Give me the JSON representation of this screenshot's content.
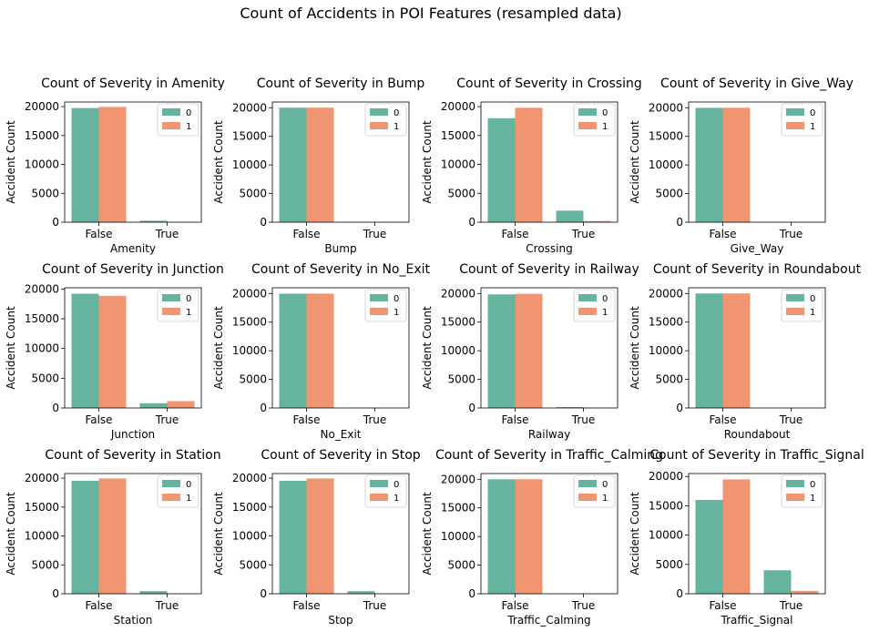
{
  "figure": {
    "title": "Count of Accidents in POI Features (resampled data)"
  },
  "style": {
    "color_0": "#66b3a0",
    "color_1": "#f0956f"
  },
  "chart_data": [
    {
      "type": "bar",
      "title": "Count of Severity in Amenity",
      "xlabel": "Amenity",
      "ylabel": "Accident Count",
      "categories": [
        "False",
        "True"
      ],
      "ylim": [
        0,
        20800
      ],
      "yticks": [
        0,
        5000,
        10000,
        15000,
        20000
      ],
      "legend": "top-right",
      "series": [
        {
          "name": "0",
          "values": [
            19750,
            250
          ]
        },
        {
          "name": "1",
          "values": [
            19950,
            50
          ]
        }
      ]
    },
    {
      "type": "bar",
      "title": "Count of Severity in Bump",
      "xlabel": "Bump",
      "ylabel": "Accident Count",
      "categories": [
        "False",
        "True"
      ],
      "ylim": [
        0,
        21000
      ],
      "yticks": [
        0,
        5000,
        10000,
        15000,
        20000
      ],
      "legend": "top-right",
      "series": [
        {
          "name": "0",
          "values": [
            20000,
            0
          ]
        },
        {
          "name": "1",
          "values": [
            20000,
            0
          ]
        }
      ]
    },
    {
      "type": "bar",
      "title": "Count of Severity in Crossing",
      "xlabel": "Crossing",
      "ylabel": "Accident Count",
      "categories": [
        "False",
        "True"
      ],
      "ylim": [
        0,
        20800
      ],
      "yticks": [
        0,
        5000,
        10000,
        15000,
        20000
      ],
      "legend": "top-right",
      "series": [
        {
          "name": "0",
          "values": [
            18000,
            2000
          ]
        },
        {
          "name": "1",
          "values": [
            19800,
            200
          ]
        }
      ]
    },
    {
      "type": "bar",
      "title": "Count of Severity in Give_Way",
      "xlabel": "Give_Way",
      "ylabel": "Accident Count",
      "categories": [
        "False",
        "True"
      ],
      "ylim": [
        0,
        21000
      ],
      "yticks": [
        0,
        5000,
        10000,
        15000,
        20000
      ],
      "legend": "top-right",
      "series": [
        {
          "name": "0",
          "values": [
            19980,
            20
          ]
        },
        {
          "name": "1",
          "values": [
            19990,
            10
          ]
        }
      ]
    },
    {
      "type": "bar",
      "title": "Count of Severity in Junction",
      "xlabel": "Junction",
      "ylabel": "Accident Count",
      "categories": [
        "False",
        "True"
      ],
      "ylim": [
        0,
        20200
      ],
      "yticks": [
        0,
        5000,
        10000,
        15000,
        20000
      ],
      "legend": "top-right",
      "series": [
        {
          "name": "0",
          "values": [
            19200,
            800
          ]
        },
        {
          "name": "1",
          "values": [
            18850,
            1150
          ]
        }
      ]
    },
    {
      "type": "bar",
      "title": "Count of Severity in No_Exit",
      "xlabel": "No_Exit",
      "ylabel": "Accident Count",
      "categories": [
        "False",
        "True"
      ],
      "ylim": [
        0,
        21000
      ],
      "yticks": [
        0,
        5000,
        10000,
        15000,
        20000
      ],
      "legend": "top-right",
      "series": [
        {
          "name": "0",
          "values": [
            19970,
            30
          ]
        },
        {
          "name": "1",
          "values": [
            19980,
            20
          ]
        }
      ]
    },
    {
      "type": "bar",
      "title": "Count of Severity in Railway",
      "xlabel": "Railway",
      "ylabel": "Accident Count",
      "categories": [
        "False",
        "True"
      ],
      "ylim": [
        0,
        21000
      ],
      "yticks": [
        0,
        5000,
        10000,
        15000,
        20000
      ],
      "legend": "top-right",
      "series": [
        {
          "name": "0",
          "values": [
            19850,
            150
          ]
        },
        {
          "name": "1",
          "values": [
            19950,
            50
          ]
        }
      ]
    },
    {
      "type": "bar",
      "title": "Count of Severity in Roundabout",
      "xlabel": "Roundabout",
      "ylabel": "Accident Count",
      "categories": [
        "False",
        "True"
      ],
      "ylim": [
        0,
        21000
      ],
      "yticks": [
        0,
        5000,
        10000,
        15000,
        20000
      ],
      "legend": "top-right",
      "series": [
        {
          "name": "0",
          "values": [
            20000,
            0
          ]
        },
        {
          "name": "1",
          "values": [
            20000,
            0
          ]
        }
      ]
    },
    {
      "type": "bar",
      "title": "Count of Severity in Station",
      "xlabel": "Station",
      "ylabel": "Accident Count",
      "categories": [
        "False",
        "True"
      ],
      "ylim": [
        0,
        20800
      ],
      "yticks": [
        0,
        5000,
        10000,
        15000,
        20000
      ],
      "legend": "top-right",
      "series": [
        {
          "name": "0",
          "values": [
            19550,
            450
          ]
        },
        {
          "name": "1",
          "values": [
            19950,
            50
          ]
        }
      ]
    },
    {
      "type": "bar",
      "title": "Count of Severity in Stop",
      "xlabel": "Stop",
      "ylabel": "Accident Count",
      "categories": [
        "False",
        "True"
      ],
      "ylim": [
        0,
        20800
      ],
      "yticks": [
        0,
        5000,
        10000,
        15000,
        20000
      ],
      "legend": "top-right",
      "series": [
        {
          "name": "0",
          "values": [
            19550,
            450
          ]
        },
        {
          "name": "1",
          "values": [
            19950,
            50
          ]
        }
      ]
    },
    {
      "type": "bar",
      "title": "Count of Severity in Traffic_Calming",
      "xlabel": "Traffic_Calming",
      "ylabel": "Accident Count",
      "categories": [
        "False",
        "True"
      ],
      "ylim": [
        0,
        21000
      ],
      "yticks": [
        0,
        5000,
        10000,
        15000,
        20000
      ],
      "legend": "top-right",
      "series": [
        {
          "name": "0",
          "values": [
            19990,
            10
          ]
        },
        {
          "name": "1",
          "values": [
            19995,
            5
          ]
        }
      ]
    },
    {
      "type": "bar",
      "title": "Count of Severity in Traffic_Signal",
      "xlabel": "Traffic_Signal",
      "ylabel": "Accident Count",
      "categories": [
        "False",
        "True"
      ],
      "ylim": [
        0,
        20500
      ],
      "yticks": [
        0,
        5000,
        10000,
        15000,
        20000
      ],
      "legend": "top-right",
      "series": [
        {
          "name": "0",
          "values": [
            16000,
            4000
          ]
        },
        {
          "name": "1",
          "values": [
            19500,
            500
          ]
        }
      ]
    }
  ]
}
